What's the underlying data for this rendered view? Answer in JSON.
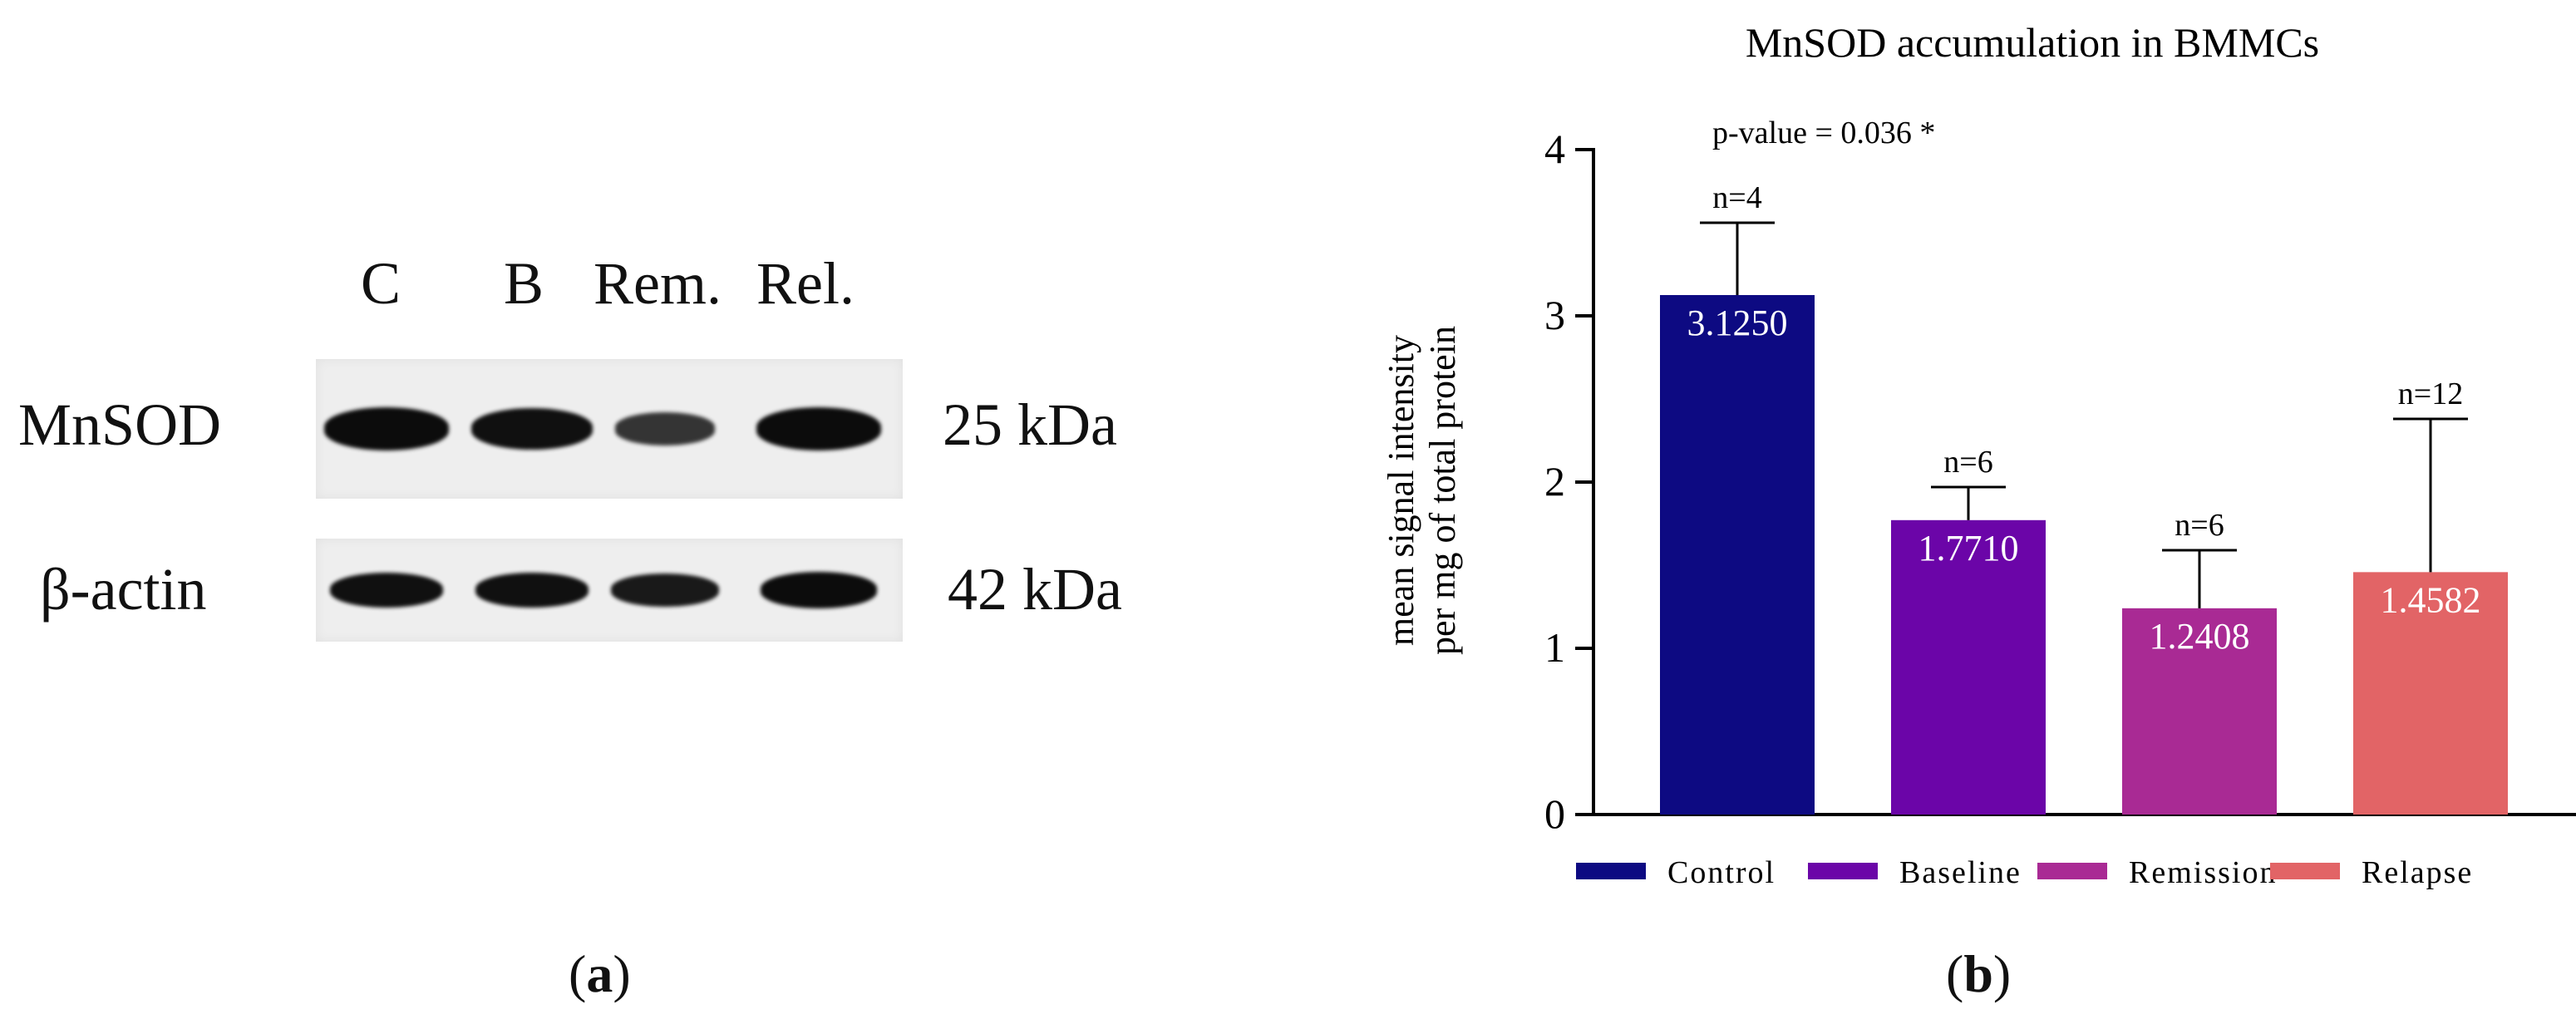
{
  "blot": {
    "lanes": [
      "C",
      "B",
      "Rem.",
      "Rel."
    ],
    "rows": [
      {
        "protein": "MnSOD",
        "size": "25 kDa",
        "band_intensity": [
          1.0,
          0.95,
          0.55,
          1.0
        ]
      },
      {
        "protein": "β-actin",
        "size": "42 kDa",
        "band_intensity": [
          0.95,
          0.95,
          0.85,
          1.0
        ]
      }
    ],
    "caption": {
      "open": "(",
      "letter": "a",
      "close": ")"
    }
  },
  "chart_data": {
    "type": "bar",
    "title": "MnSOD accumulation in BMMCs",
    "annotation": "p-value = 0.036 *",
    "ylabel_line1": "mean signal intensity",
    "ylabel_line2": "per mg of total protein",
    "xlabel": "",
    "ylim": [
      0,
      4
    ],
    "yticks": [
      "0",
      "1",
      "2",
      "3",
      "4"
    ],
    "categories": [
      "Control",
      "Baseline",
      "Remission",
      "Relapse"
    ],
    "values": [
      3.125,
      1.771,
      1.2408,
      1.4582
    ],
    "value_labels": [
      "3.1250",
      "1.7710",
      "1.2408",
      "1.4582"
    ],
    "error_upper": [
      3.56,
      1.97,
      1.59,
      2.38
    ],
    "n_labels": [
      "n=4",
      "n=6",
      "n=6",
      "n=12"
    ],
    "colors": [
      "#0d0a82",
      "#6b05a8",
      "#a92a94",
      "#e26466"
    ],
    "legend": [
      "Control",
      "Baseline",
      "Remission",
      "Relapse"
    ],
    "legend_position": "bottom",
    "grid": false,
    "caption": {
      "open": "(",
      "letter": "b",
      "close": ")"
    }
  }
}
